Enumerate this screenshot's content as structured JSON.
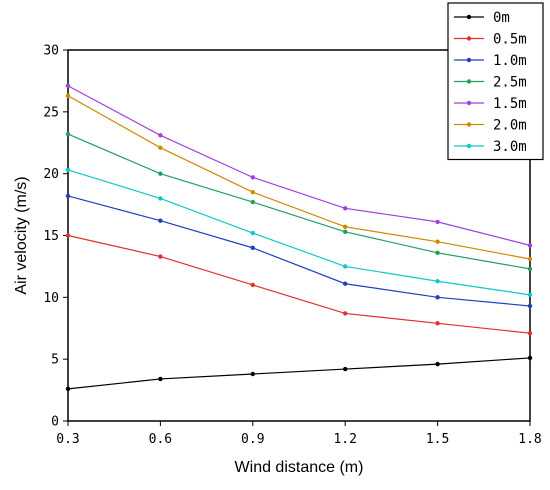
{
  "chart_data": {
    "type": "line",
    "title": "",
    "xlabel": "Wind distance (m)",
    "ylabel": "Air velocity (m/s)",
    "x": [
      0.3,
      0.6,
      0.9,
      1.2,
      1.5,
      1.8
    ],
    "x_tick_labels": [
      "0.3",
      "0.6",
      "0.9",
      "1.2",
      "1.5",
      "1.8"
    ],
    "xlim": [
      0.3,
      1.8
    ],
    "ylim": [
      0,
      30
    ],
    "y_ticks": [
      0,
      5,
      10,
      15,
      20,
      25,
      30
    ],
    "grid": false,
    "legend_position": "top-right",
    "series": [
      {
        "name": "0m",
        "color": "#000000",
        "values": [
          2.6,
          3.4,
          3.8,
          4.2,
          4.6,
          5.1
        ]
      },
      {
        "name": "0.5m",
        "color": "#e03030",
        "values": [
          15.0,
          13.3,
          11.0,
          8.7,
          7.9,
          7.1
        ]
      },
      {
        "name": "1.0m",
        "color": "#2040c0",
        "values": [
          18.2,
          16.2,
          14.0,
          11.1,
          10.0,
          9.3
        ]
      },
      {
        "name": "2.5m",
        "color": "#20a060",
        "values": [
          23.2,
          20.0,
          17.7,
          15.3,
          13.6,
          12.3
        ]
      },
      {
        "name": "1.5m",
        "color": "#a040e0",
        "values": [
          27.1,
          23.1,
          19.7,
          17.2,
          16.1,
          14.2
        ]
      },
      {
        "name": "2.0m",
        "color": "#d08800",
        "values": [
          26.3,
          22.1,
          18.5,
          15.7,
          14.5,
          13.1
        ]
      },
      {
        "name": "3.0m",
        "color": "#10c8c8",
        "values": [
          20.3,
          18.0,
          15.2,
          12.5,
          11.3,
          10.2
        ]
      }
    ]
  }
}
